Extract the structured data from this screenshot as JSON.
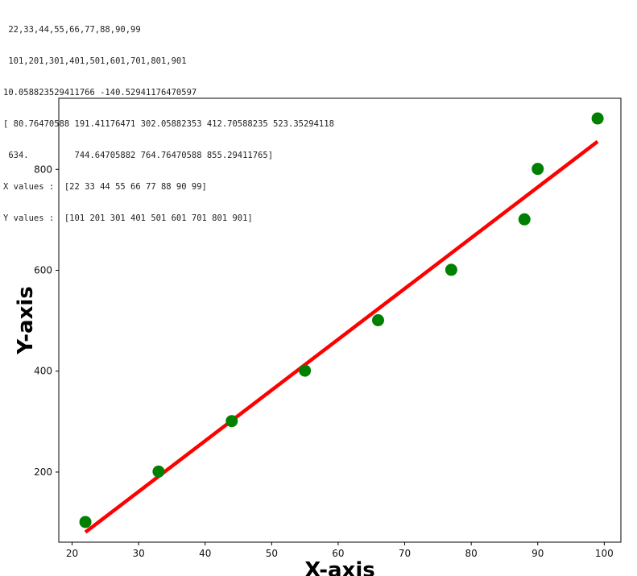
{
  "console": {
    "lines": [
      " 22,33,44,55,66,77,88,90,99",
      " 101,201,301,401,501,601,701,801,901",
      "10.058823529411766 -140.52941176470597",
      "[ 80.76470588 191.41176471 302.05882353 412.70588235 523.35294118",
      " 634.         744.64705882 764.76470588 855.29411765]",
      "X values :  [22 33 44 55 66 77 88 90 99]",
      "Y values :  [101 201 301 401 501 601 701 801 901]"
    ]
  },
  "chart_data": {
    "type": "scatter",
    "xlabel": "X-axis",
    "ylabel": "Y-axis",
    "xlim": [
      18,
      102.5
    ],
    "ylim": [
      61,
      941
    ],
    "x_ticks": [
      20,
      30,
      40,
      50,
      60,
      70,
      80,
      90,
      100
    ],
    "y_ticks": [
      200,
      400,
      600,
      800
    ],
    "points": {
      "x": [
        22,
        33,
        44,
        55,
        66,
        77,
        88,
        90,
        99
      ],
      "y": [
        101,
        201,
        301,
        401,
        501,
        601,
        701,
        801,
        901
      ],
      "color": "#008000"
    },
    "fit_line": {
      "slope": 10.058823529411766,
      "intercept": -140.52941176470597,
      "x_range": [
        22,
        99
      ],
      "color": "#ff0000"
    },
    "grid": false,
    "legend": "none"
  }
}
